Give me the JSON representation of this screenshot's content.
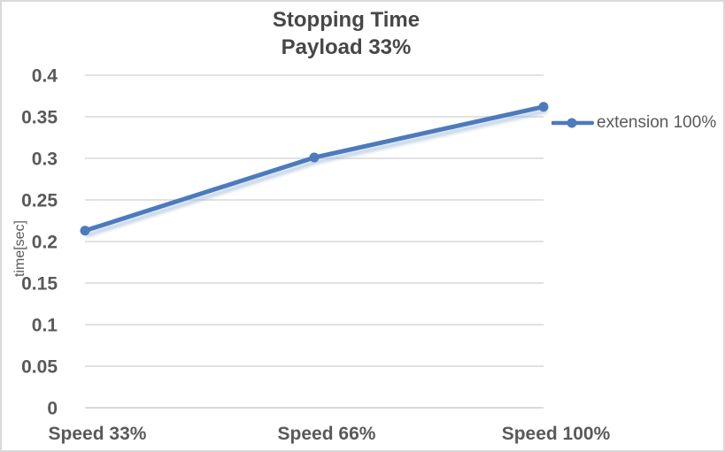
{
  "chart_data": {
    "type": "line",
    "title": "Stopping Time Payload 33%",
    "title_lines": [
      "Stopping Time",
      "Payload 33%"
    ],
    "categories": [
      "Speed 33%",
      "Speed 66%",
      "Speed 100%"
    ],
    "series": [
      {
        "name": "extension 100%",
        "values": [
          0.213,
          0.301,
          0.362
        ]
      }
    ],
    "xlabel": "",
    "ylabel": "time[sec]",
    "ylim": [
      0,
      0.4
    ],
    "yticks": [
      0,
      0.05,
      0.1,
      0.15,
      0.2,
      0.25,
      0.3,
      0.35,
      0.4
    ],
    "grid": true,
    "legend_position": "right-middle",
    "colors": {
      "series": "#4b7bbd",
      "series_shadow": "#9ab6d6",
      "gridline": "#d9d9d9",
      "axis_line": "#d4d4d4",
      "label_text": "#595959",
      "title_text": "#474747",
      "chart_border": "#d9d9d9",
      "background": "#ffffff"
    }
  }
}
